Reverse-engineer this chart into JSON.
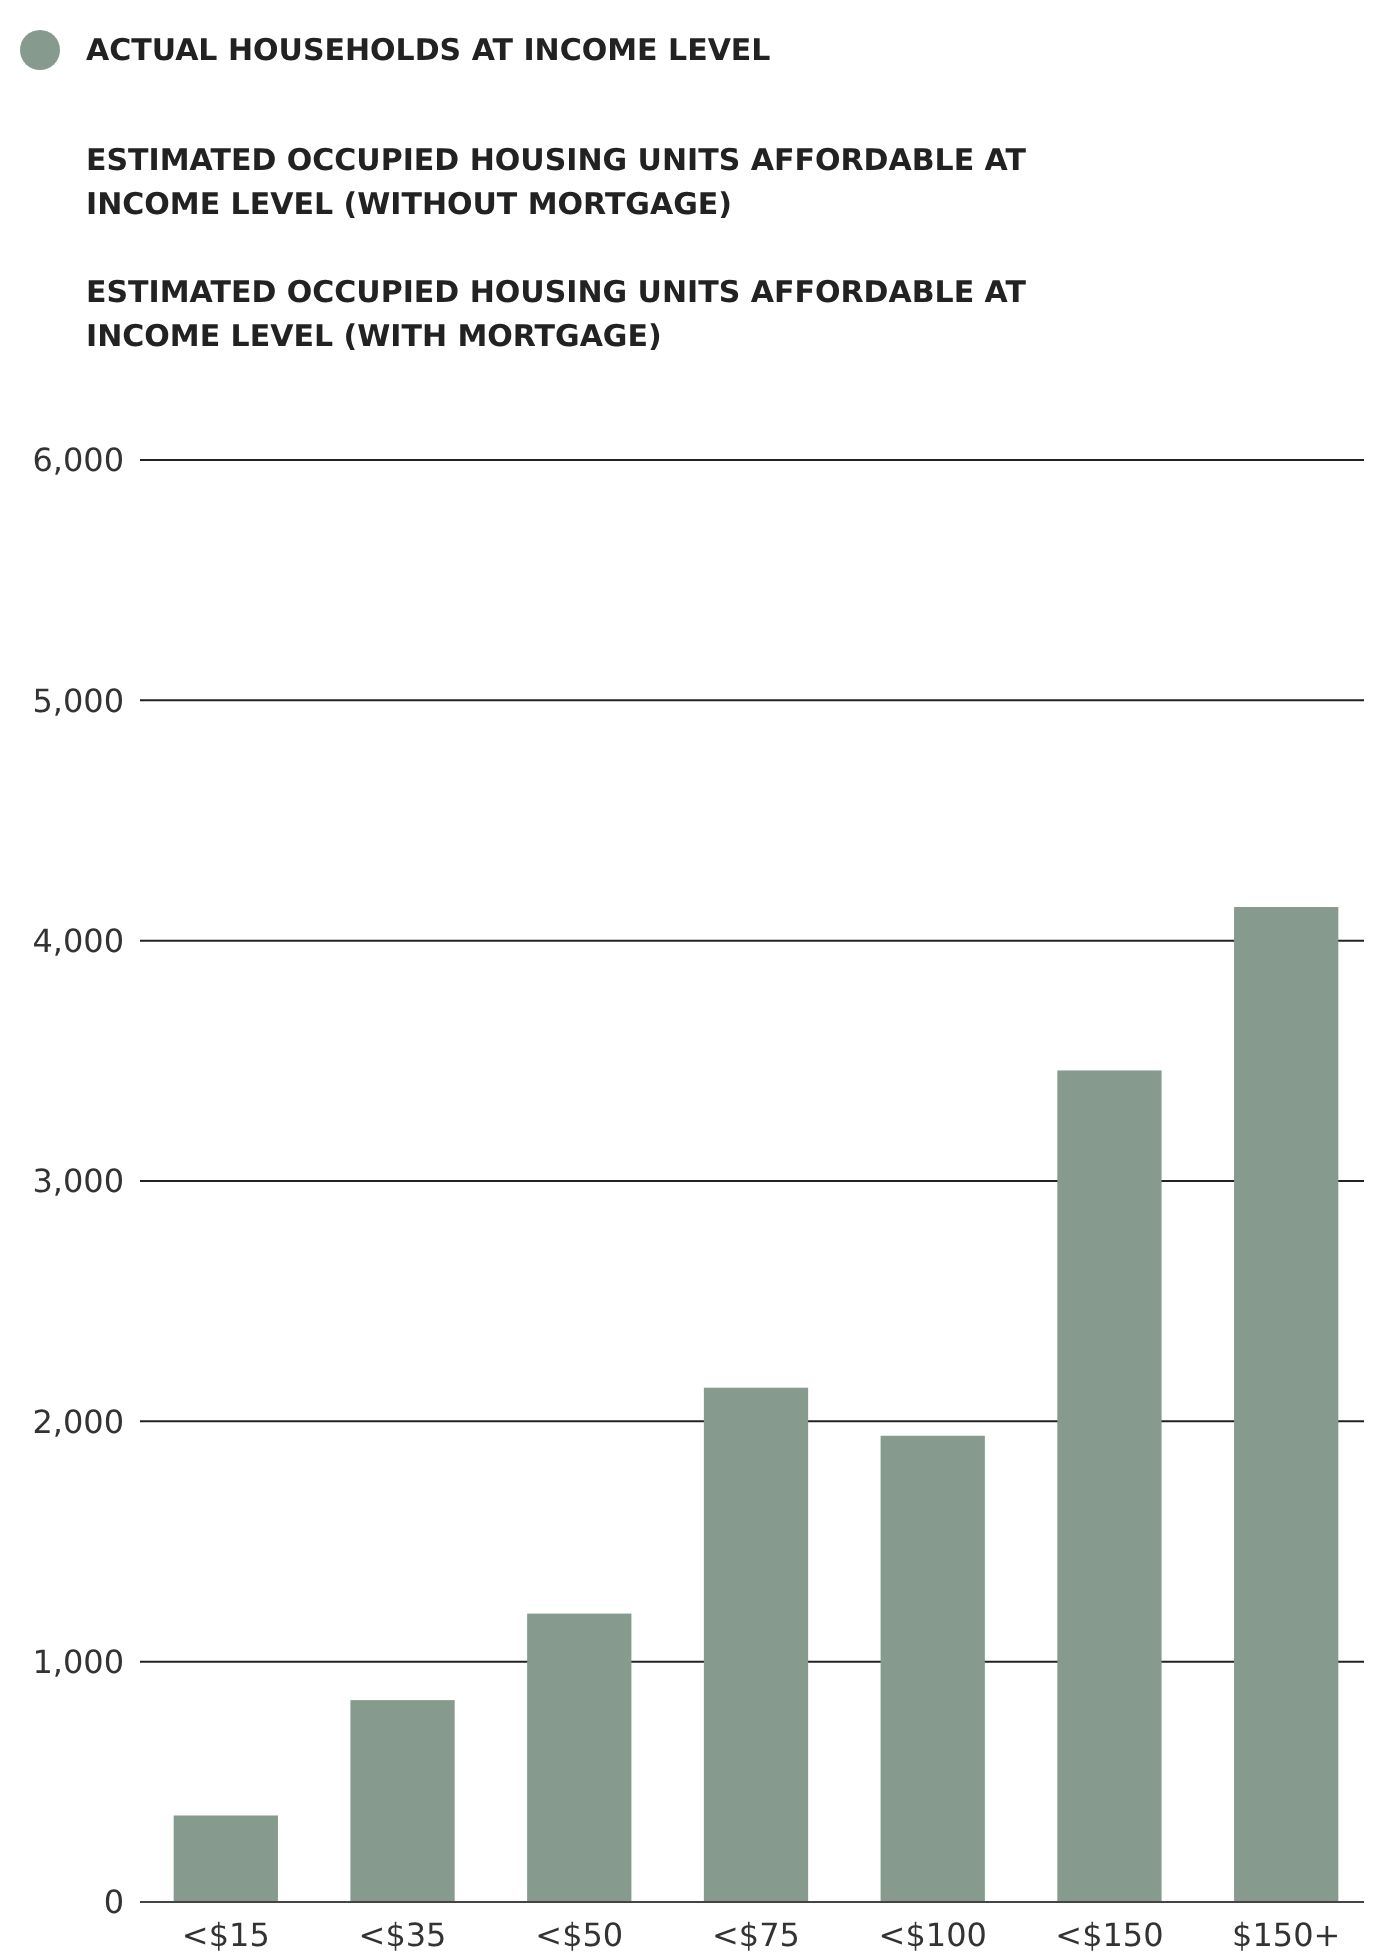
{
  "chart_data": {
    "type": "bar",
    "categories": [
      "<$15",
      "<$35",
      "<$50",
      "<$75",
      "<$100",
      "<$150",
      "$150+"
    ],
    "series": [
      {
        "name": "ACTUAL HOUSEHOLDS AT INCOME LEVEL",
        "color": "#869b8e",
        "values": [
          360,
          840,
          1200,
          2140,
          1940,
          3460,
          4140
        ]
      }
    ],
    "annotations": [
      "ESTIMATED OCCUPIED HOUSING UNITS AFFORDABLE AT INCOME LEVEL (WITHOUT MORTGAGE)",
      "ESTIMATED OCCUPIED HOUSING UNITS AFFORDABLE AT INCOME LEVEL (WITH MORTGAGE)"
    ],
    "ylim": [
      0,
      6000
    ],
    "yticks": [
      0,
      {
        "value": 1000,
        "label": "1,000"
      },
      {
        "value": 2000,
        "label": "2,000"
      },
      {
        "value": 3000,
        "label": "3,000"
      },
      {
        "value": 4000,
        "label": "4,000"
      },
      {
        "value": 5000,
        "label": "5,000"
      },
      {
        "value": 6000,
        "label": "6,000"
      }
    ],
    "grid": "y",
    "legend": "top left"
  }
}
